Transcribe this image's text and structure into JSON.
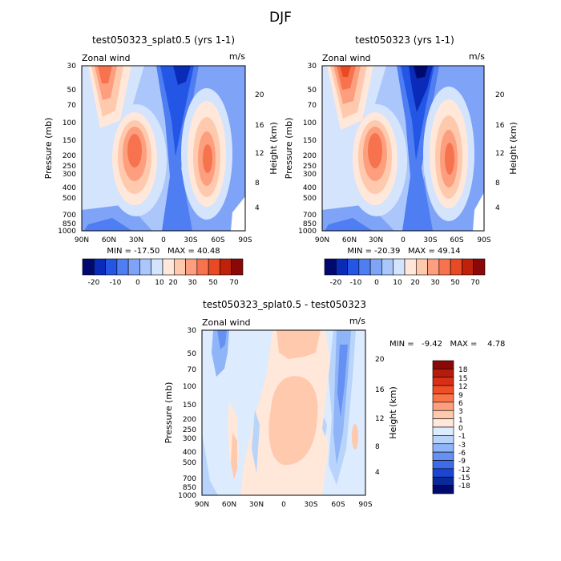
{
  "figure_title": "DJF",
  "chart_data": [
    {
      "type": "heatmap",
      "title": "test050323_splat0.5 (yrs 1-1)",
      "variable_label": "Zonal wind",
      "units": "m/s",
      "xlabel": "",
      "ylabel": "Pressure (mb)",
      "right_ylabel": "Height (km)",
      "x_ticks": [
        "90N",
        "60N",
        "30N",
        "0",
        "30S",
        "60S",
        "90S"
      ],
      "y_ticks": [
        "30",
        "50",
        "70",
        "100",
        "150",
        "200",
        "250",
        "300",
        "400",
        "500",
        "700",
        "850",
        "1000"
      ],
      "right_ticks": [
        "20",
        "16",
        "12",
        "8",
        "4"
      ],
      "min_value": -17.5,
      "max_value": 40.48,
      "stats_text": "MIN = -17.50   MAX = 40.48",
      "colorbar_levels": [
        "-20",
        "-10",
        "0",
        "10",
        "20",
        "30",
        "50",
        "70"
      ],
      "colorbar_colors": [
        "#000a6e",
        "#0a2ab8",
        "#2456e6",
        "#4f7df2",
        "#7ea3f7",
        "#aac6fb",
        "#d4e4fd",
        "#ffe8da",
        "#ffc9ae",
        "#fd9e7e",
        "#f7734e",
        "#e84a24",
        "#c0210a",
        "#8a0808"
      ]
    },
    {
      "type": "heatmap",
      "title": "test050323 (yrs 1-1)",
      "variable_label": "Zonal wind",
      "units": "m/s",
      "xlabel": "",
      "ylabel": "Pressure (mb)",
      "right_ylabel": "Height (km)",
      "x_ticks": [
        "90N",
        "60N",
        "30N",
        "0",
        "30S",
        "60S",
        "90S"
      ],
      "y_ticks": [
        "30",
        "50",
        "70",
        "100",
        "150",
        "200",
        "250",
        "300",
        "400",
        "500",
        "700",
        "850",
        "1000"
      ],
      "right_ticks": [
        "20",
        "16",
        "12",
        "8",
        "4"
      ],
      "min_value": -20.39,
      "max_value": 49.14,
      "stats_text": "MIN = -20.39   MAX = 49.14",
      "colorbar_levels": [
        "-20",
        "-10",
        "0",
        "10",
        "20",
        "30",
        "50",
        "70"
      ],
      "colorbar_colors": [
        "#000a6e",
        "#0a2ab8",
        "#2456e6",
        "#4f7df2",
        "#7ea3f7",
        "#aac6fb",
        "#d4e4fd",
        "#ffe8da",
        "#ffc9ae",
        "#fd9e7e",
        "#f7734e",
        "#e84a24",
        "#c0210a",
        "#8a0808"
      ]
    },
    {
      "type": "heatmap",
      "title": "test050323_splat0.5 - test050323",
      "variable_label": "Zonal wind",
      "units": "m/s",
      "xlabel": "",
      "ylabel": "Pressure (mb)",
      "right_ylabel": "Height (km)",
      "x_ticks": [
        "90N",
        "60N",
        "30N",
        "0",
        "30S",
        "60S",
        "90S"
      ],
      "y_ticks": [
        "30",
        "50",
        "70",
        "100",
        "150",
        "200",
        "250",
        "300",
        "400",
        "500",
        "700",
        "850",
        "1000"
      ],
      "right_ticks": [
        "20",
        "16",
        "12",
        "8",
        "4"
      ],
      "min_value": -9.42,
      "max_value": 4.78,
      "stats_text": "MIN =   -9.42   MAX =    4.78",
      "colorbar_levels": [
        "18",
        "15",
        "12",
        "9",
        "6",
        "3",
        "1",
        "0",
        "-1",
        "-3",
        "-6",
        "-9",
        "-12",
        "-15",
        "-18"
      ],
      "colorbar_colors": [
        "#8a0808",
        "#b41c0e",
        "#d83018",
        "#f04e26",
        "#fb7448",
        "#fd9e7e",
        "#ffc9ae",
        "#ffe8da",
        "#dcebfd",
        "#b8d4fb",
        "#8fb4f7",
        "#6690f1",
        "#3d6cea",
        "#1c46d2",
        "#0a2a9a",
        "#000a6e"
      ]
    }
  ]
}
